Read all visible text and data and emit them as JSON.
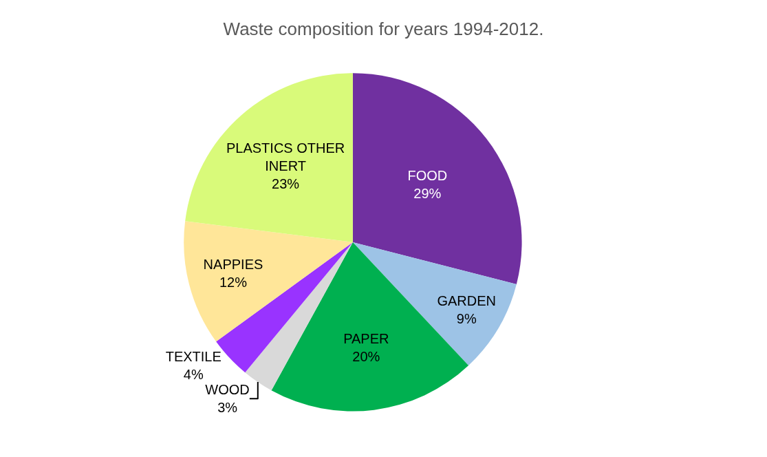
{
  "chart_data": {
    "type": "pie",
    "title": "Waste composition for years 1994-2012.",
    "categories": [
      "FOOD",
      "GARDEN",
      "PAPER",
      "WOOD",
      "TEXTILE",
      "NAPPIES",
      "PLASTICS OTHER INERT"
    ],
    "values": [
      29,
      9,
      20,
      3,
      4,
      12,
      23
    ],
    "colors": [
      "#7030a0",
      "#9dc3e6",
      "#00b050",
      "#d9d9d9",
      "#9933ff",
      "#ffe699",
      "#d9fa7a"
    ],
    "value_labels": [
      "29%",
      "9%",
      "20%",
      "3%",
      "4%",
      "12%",
      "23%"
    ],
    "legend": false
  }
}
